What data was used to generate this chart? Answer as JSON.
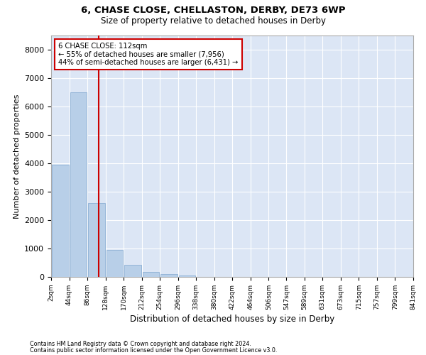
{
  "title1": "6, CHASE CLOSE, CHELLASTON, DERBY, DE73 6WP",
  "title2": "Size of property relative to detached houses in Derby",
  "xlabel": "Distribution of detached houses by size in Derby",
  "ylabel": "Number of detached properties",
  "bar_color": "#b8cfe8",
  "bar_edge_color": "#8db0d4",
  "background_color": "#dce6f5",
  "grid_color": "#ffffff",
  "vline_color": "#cc0000",
  "vline_value": 112,
  "annotation_line1": "6 CHASE CLOSE: 112sqm",
  "annotation_line2": "← 55% of detached houses are smaller (7,956)",
  "annotation_line3": "44% of semi-detached houses are larger (6,431) →",
  "footnote1": "Contains HM Land Registry data © Crown copyright and database right 2024.",
  "footnote2": "Contains public sector information licensed under the Open Government Licence v3.0.",
  "bin_edges": [
    2,
    44,
    86,
    128,
    170,
    212,
    254,
    296,
    338,
    380,
    422,
    464,
    506,
    547,
    589,
    631,
    673,
    715,
    757,
    799,
    841
  ],
  "bin_labels": [
    "2sqm",
    "44sqm",
    "86sqm",
    "128sqm",
    "170sqm",
    "212sqm",
    "254sqm",
    "296sqm",
    "338sqm",
    "380sqm",
    "422sqm",
    "464sqm",
    "506sqm",
    "547sqm",
    "589sqm",
    "631sqm",
    "673sqm",
    "715sqm",
    "757sqm",
    "799sqm",
    "841sqm"
  ],
  "bar_heights": [
    3950,
    6500,
    2600,
    950,
    420,
    175,
    90,
    60,
    0,
    0,
    0,
    0,
    0,
    0,
    0,
    0,
    0,
    0,
    0,
    0
  ],
  "ylim": [
    0,
    8500
  ],
  "yticks": [
    0,
    1000,
    2000,
    3000,
    4000,
    5000,
    6000,
    7000,
    8000
  ]
}
